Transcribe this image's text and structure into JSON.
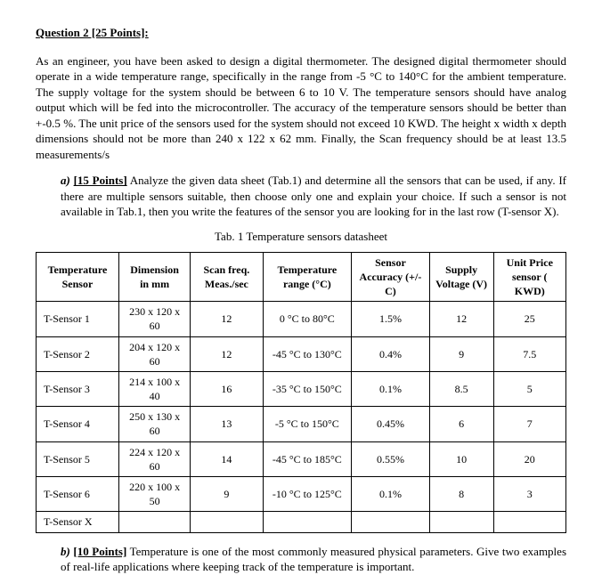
{
  "title": "Question 2 [25 Points]:",
  "intro": "As an engineer, you have been asked to design a digital thermometer. The designed digital thermometer should operate in a wide temperature range, specifically in the range from -5 °C to 140°C for the ambient temperature. The supply voltage for the system should be between 6 to 10 V. The temperature sensors should have analog output which will be fed into the microcontroller. The accuracy of the temperature sensors should be better than +-0.5 %. The unit price of the sensors used for the system should not exceed 10 KWD. The height x width x depth dimensions should not be more than 240 x 122 x 62 mm. Finally, the Scan frequency should be at least 13.5 measurements/s",
  "partA": {
    "label": "a)",
    "points": "[15 Points]",
    "text": " Analyze the given data sheet (Tab.1) and determine all the sensors that can be used, if any. If there are multiple sensors suitable, then choose only one and explain your choice. If such a sensor is not available in Tab.1, then you write the features of the sensor you are looking for in the last row (T-sensor X)."
  },
  "tableCaption": "Tab. 1 Temperature sensors datasheet",
  "headers": {
    "c1": "Temperature Sensor",
    "c2": "Dimension in mm",
    "c3": "Scan freq. Meas./sec",
    "c4": "Temperature range (°C)",
    "c5": "Sensor Accuracy (+/- C)",
    "c6": "Supply Voltage (V)",
    "c7": "Unit Price sensor ( KWD)"
  },
  "rows": [
    {
      "name": "T-Sensor 1",
      "dim": "230 x 120 x 60",
      "freq": "12",
      "range": "0 °C to 80°C",
      "acc": "1.5%",
      "volt": "12",
      "price": "25"
    },
    {
      "name": "T-Sensor 2",
      "dim": "204 x 120 x 60",
      "freq": "12",
      "range": "-45 °C to 130°C",
      "acc": "0.4%",
      "volt": "9",
      "price": "7.5"
    },
    {
      "name": "T-Sensor 3",
      "dim": "214 x 100 x 40",
      "freq": "16",
      "range": "-35 °C to 150°C",
      "acc": "0.1%",
      "volt": "8.5",
      "price": "5"
    },
    {
      "name": "T-Sensor 4",
      "dim": "250 x 130 x 60",
      "freq": "13",
      "range": "-5 °C to 150°C",
      "acc": "0.45%",
      "volt": "6",
      "price": "7"
    },
    {
      "name": "T-Sensor 5",
      "dim": "224 x 120 x 60",
      "freq": "14",
      "range": "-45 °C to 185°C",
      "acc": "0.55%",
      "volt": "10",
      "price": "20"
    },
    {
      "name": "T-Sensor 6",
      "dim": "220 x 100 x 50",
      "freq": "9",
      "range": "-10 °C to 125°C",
      "acc": "0.1%",
      "volt": "8",
      "price": "3"
    },
    {
      "name": "T-Sensor X",
      "dim": "",
      "freq": "",
      "range": "",
      "acc": "",
      "volt": "",
      "price": ""
    }
  ],
  "partB": {
    "label": "b)",
    "points": "[10 Points]",
    "text": " Temperature is one of the most commonly measured physical parameters. Give two examples of real-life applications where keeping track of the temperature is important."
  }
}
